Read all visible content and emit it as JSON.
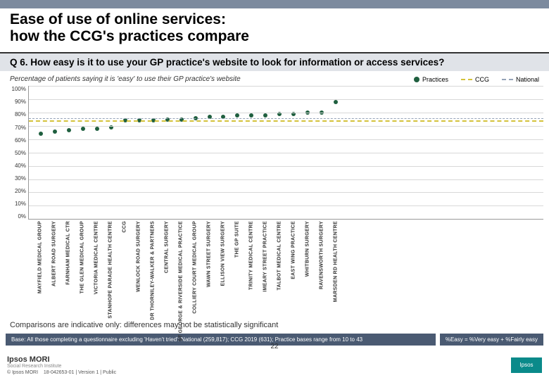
{
  "title": "Ease of use of online services:\nhow the CCG's practices compare",
  "question": "Q 6. How easy is it to use your GP practice's website to look for information or access services?",
  "subtitle": "Percentage of patients saying it is 'easy' to use their GP practice's website",
  "legend": {
    "practices": {
      "label": "Practices",
      "color": "#1f5f3f"
    },
    "ccg": {
      "label": "CCG",
      "color": "#d4c23a"
    },
    "national": {
      "label": "National",
      "color": "#95a3b8"
    }
  },
  "chart": {
    "type": "scatter-with-reference-lines",
    "ylim": [
      0,
      100
    ],
    "ytick_step": 10,
    "ylabels": [
      "0%",
      "10%",
      "20%",
      "30%",
      "40%",
      "50%",
      "60%",
      "70%",
      "80%",
      "90%",
      "100%"
    ],
    "grid_color": "#d8d8d8",
    "background": "#ffffff",
    "ccg_line": {
      "value": 74,
      "color": "#d4c23a",
      "dash": "6 4",
      "width": 2
    },
    "national_line": {
      "value": 76,
      "color": "#95a3b8",
      "dash": "3 3",
      "width": 1.5
    },
    "dot_color": "#1f5f3f",
    "dot_size": 6,
    "practices": [
      {
        "label": "MAYFIELD MEDICAL GROUP",
        "value": 64
      },
      {
        "label": "ALBERT ROAD SURGERY",
        "value": 66
      },
      {
        "label": "FARNHAM MEDICAL CTR",
        "value": 67
      },
      {
        "label": "THE GLEN MEDICAL GROUP",
        "value": 68
      },
      {
        "label": "VICTORIA MEDICAL CENTRE",
        "value": 68
      },
      {
        "label": "STANHOPE PARADE HEALTH CENTRE",
        "value": 69
      },
      {
        "label": "CCG",
        "value": 74
      },
      {
        "label": "WENLOCK ROAD SURGERY",
        "value": 74
      },
      {
        "label": "DR THORNILEY-WALKER & PARTNERS",
        "value": 74
      },
      {
        "label": "CENTRAL SURGERY",
        "value": 75
      },
      {
        "label": "ST GEORGE & RIVERSIDE MEDICAL PRACTICE",
        "value": 75
      },
      {
        "label": "COLLIERY COURT MEDICAL GROUP",
        "value": 76
      },
      {
        "label": "WAWN STREET SURGERY",
        "value": 77
      },
      {
        "label": "ELLISON VIEW SURGERY",
        "value": 77
      },
      {
        "label": "THE GP SUITE",
        "value": 78
      },
      {
        "label": "TRINITY MEDICAL CENTRE",
        "value": 78
      },
      {
        "label": "IMEARY STREET PRACTICE",
        "value": 78
      },
      {
        "label": "TALBOT MEDICAL CENTRE",
        "value": 79
      },
      {
        "label": "EAST WING PRACTICE",
        "value": 79
      },
      {
        "label": "WHITBURN SURGERY",
        "value": 80
      },
      {
        "label": "RAVENSWORTH SURGERY",
        "value": 80
      },
      {
        "label": "MARSDEN RD HEALTH CENTRE",
        "value": 88
      }
    ]
  },
  "comparison_note": "Comparisons are indicative only: differences may not be statistically significant",
  "base_left": "Base: All those completing a questionnaire excluding 'Haven't tried': National (259,817); CCG 2019 (631); Practice bases range from 10 to 43",
  "base_right": "%Easy = %Very easy + %Fairly easy",
  "footer": {
    "brand": "Ipsos MORI",
    "brand_sub": "Social Research Institute",
    "copyright": "© Ipsos MORI",
    "ref": "18-042653-01 | Version 1 | Public",
    "page": "22",
    "badge": "Ipsos"
  }
}
